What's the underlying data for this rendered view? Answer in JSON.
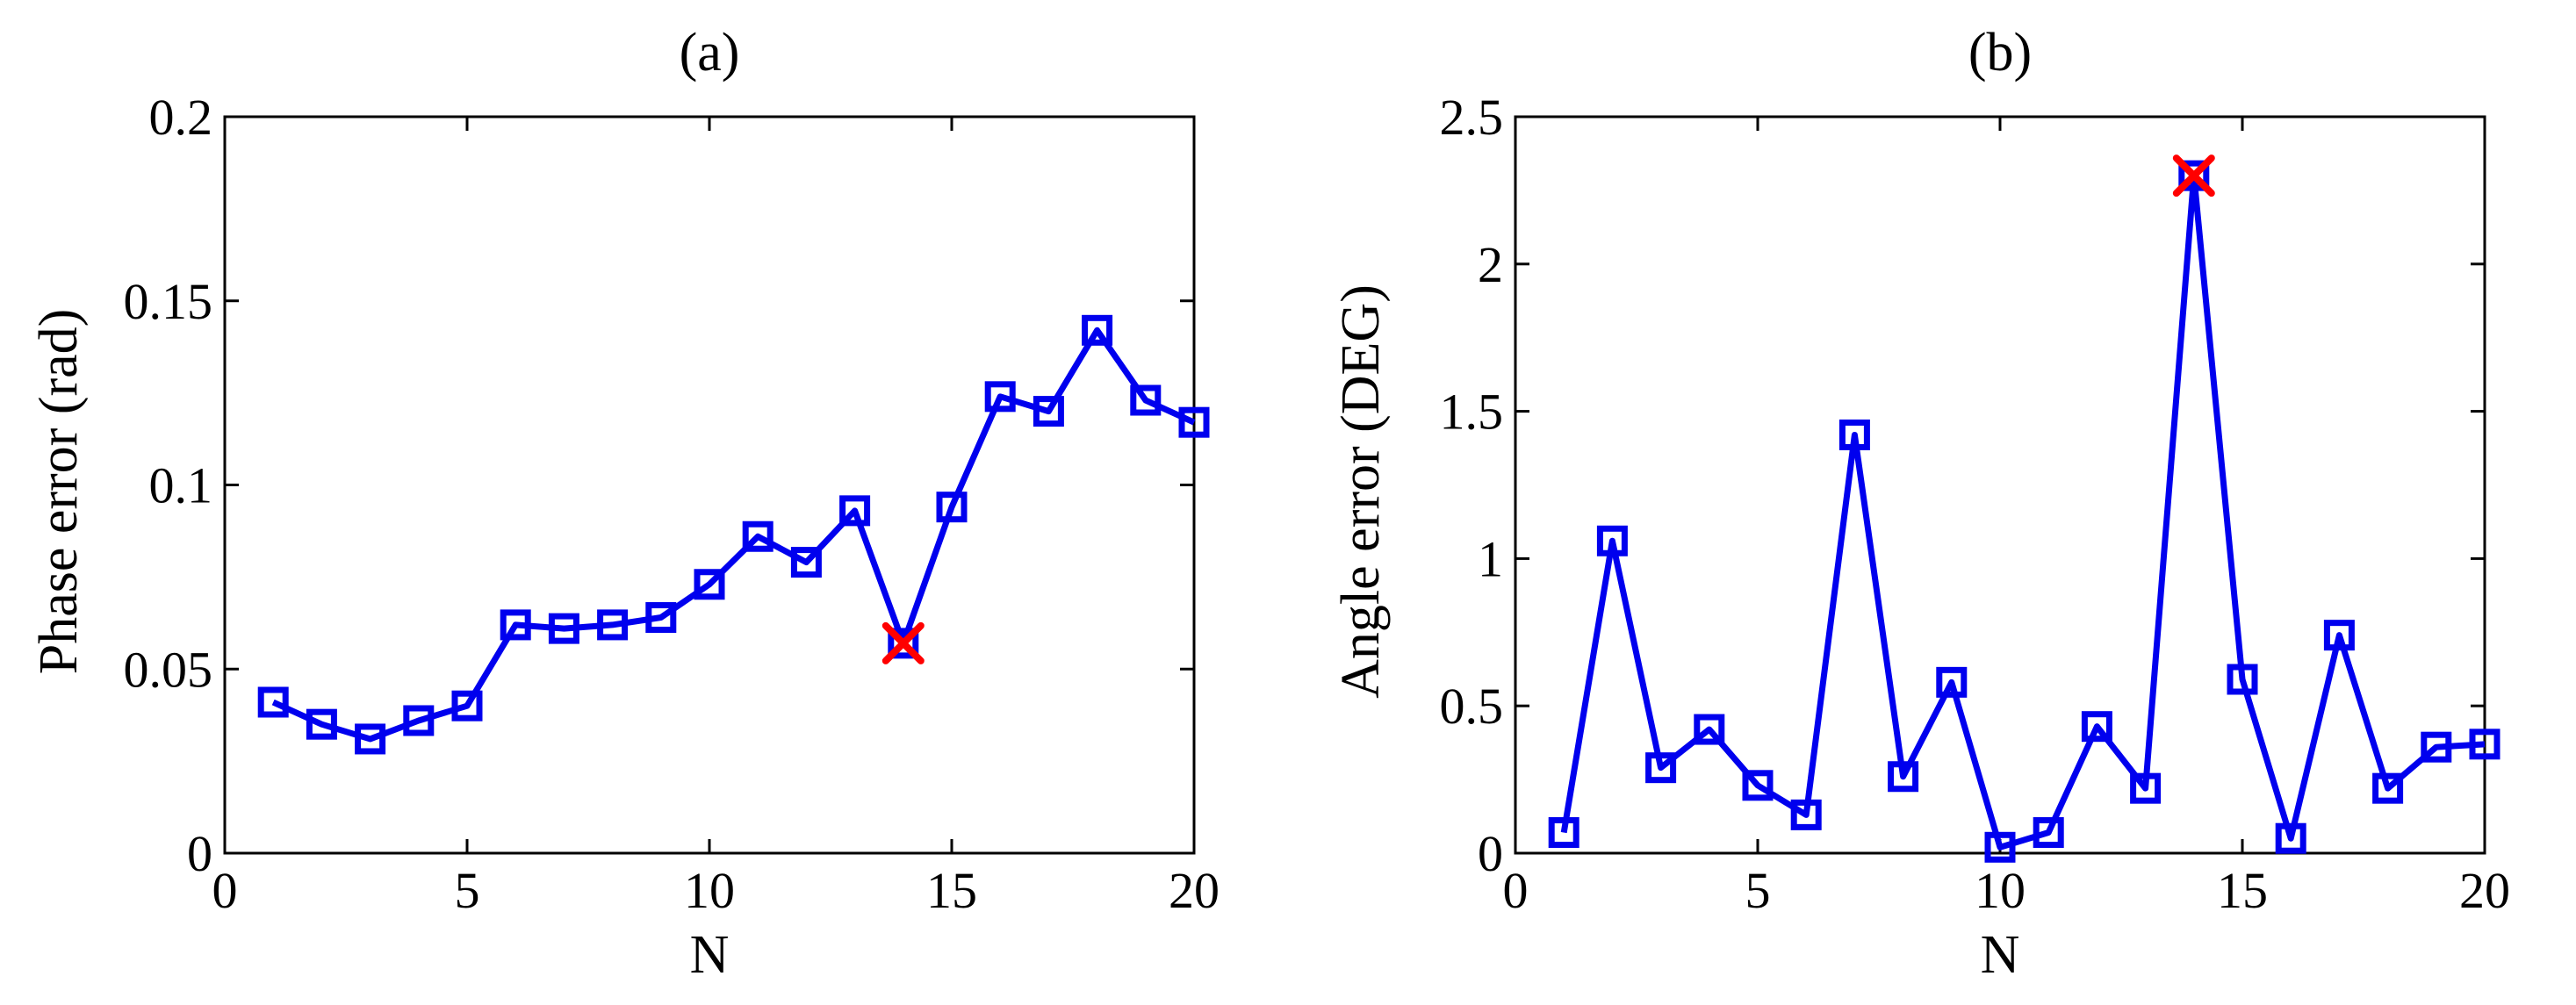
{
  "chart_data": [
    {
      "type": "line",
      "title": "(a)",
      "xlabel": "N",
      "ylabel": "Phase error (rad)",
      "xlim": [
        0,
        20
      ],
      "ylim": [
        0,
        0.2
      ],
      "xticks": [
        0,
        5,
        10,
        15,
        20
      ],
      "xtick_labels": [
        "0",
        "5",
        "10",
        "15",
        "20"
      ],
      "yticks": [
        0,
        0.05,
        0.1,
        0.15,
        0.2
      ],
      "ytick_labels": [
        "0",
        "0.05",
        "0.1",
        "0.15",
        "0.2"
      ],
      "grid": false,
      "series": [
        {
          "x": [
            1,
            2,
            3,
            4,
            5,
            6,
            7,
            8,
            9,
            10,
            11,
            12,
            13,
            14,
            15,
            16,
            17,
            18,
            19,
            20
          ],
          "y": [
            0.041,
            0.035,
            0.031,
            0.036,
            0.04,
            0.062,
            0.061,
            0.062,
            0.064,
            0.073,
            0.086,
            0.079,
            0.093,
            0.057,
            0.094,
            0.124,
            0.12,
            0.142,
            0.123,
            0.117
          ],
          "color": "#0000ee",
          "marker": "square"
        }
      ],
      "highlight": {
        "x": 14,
        "y": 0.057,
        "marker": "x",
        "color": "#ff0000"
      }
    },
    {
      "type": "line",
      "title": "(b)",
      "xlabel": "N",
      "ylabel": "Angle error (DEG)",
      "xlim": [
        0,
        20
      ],
      "ylim": [
        0,
        2.5
      ],
      "xticks": [
        0,
        5,
        10,
        15,
        20
      ],
      "xtick_labels": [
        "0",
        "5",
        "10",
        "15",
        "20"
      ],
      "yticks": [
        0,
        0.5,
        1,
        1.5,
        2,
        2.5
      ],
      "ytick_labels": [
        "0",
        "0.5",
        "1",
        "1.5",
        "2",
        "2.5"
      ],
      "grid": false,
      "series": [
        {
          "x": [
            1,
            2,
            3,
            4,
            5,
            6,
            7,
            8,
            9,
            10,
            11,
            12,
            13,
            14,
            15,
            16,
            17,
            18,
            19,
            20
          ],
          "y": [
            0.07,
            1.06,
            0.29,
            0.42,
            0.23,
            0.13,
            1.42,
            0.26,
            0.58,
            0.02,
            0.07,
            0.43,
            0.22,
            2.3,
            0.59,
            0.05,
            0.74,
            0.22,
            0.36,
            0.37
          ],
          "color": "#0000ee",
          "marker": "square"
        }
      ],
      "highlight": {
        "x": 14,
        "y": 2.3,
        "marker": "x",
        "color": "#ff0000"
      }
    }
  ]
}
